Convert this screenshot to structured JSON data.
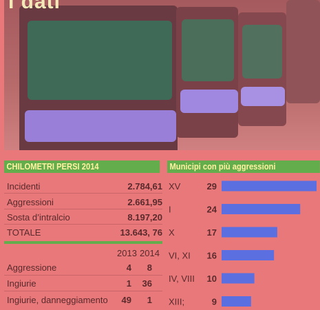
{
  "photo": {
    "title": "I dati"
  },
  "km_table": {
    "title": "CHILOMETRI PERSI 2014",
    "rows": [
      {
        "label": "Incidenti",
        "value": "2.784,61"
      },
      {
        "label": "Aggressioni",
        "value": "2.661,95"
      },
      {
        "label": "Sosta d’intralcio",
        "value": "8.197,20"
      },
      {
        "label": "TOTALE",
        "value": "13.643, 76"
      }
    ]
  },
  "incidents_table": {
    "years": [
      "2013",
      "2014"
    ],
    "rows": [
      {
        "label": "Aggressione",
        "y2013": "4",
        "y2014": "8"
      },
      {
        "label": "Ingiurie",
        "y2013": "1",
        "y2014": "36"
      },
      {
        "label": "Ingiurie, danneggiamento",
        "y2013": "49",
        "y2014": "1"
      }
    ]
  },
  "chart_data": {
    "type": "bar",
    "title": "Municipi con più aggressioni",
    "categories": [
      "XV",
      "I",
      "X",
      "VI, XI",
      "IV, VIII",
      "XIII;"
    ],
    "values": [
      29,
      24,
      17,
      16,
      10,
      9
    ],
    "xlim": [
      0,
      29
    ],
    "bar_color": "#5b6fe0",
    "grid": false
  }
}
